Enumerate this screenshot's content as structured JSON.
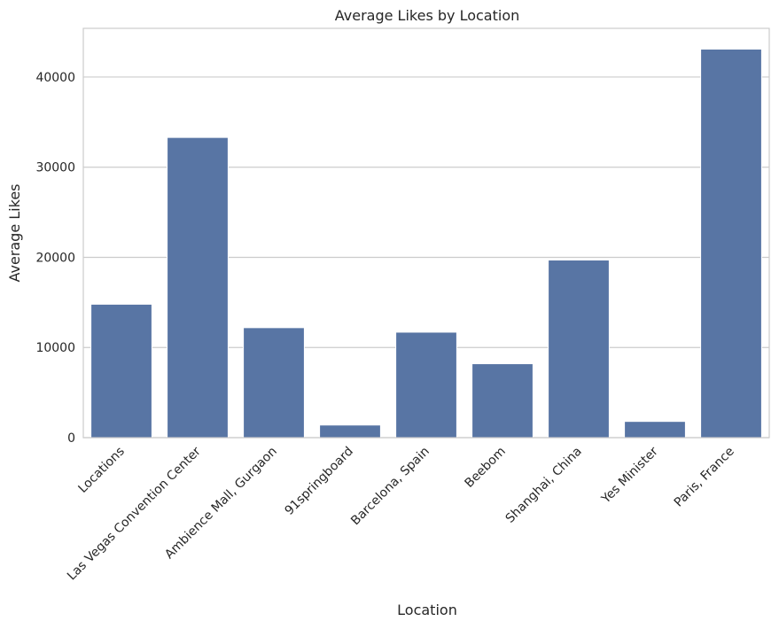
{
  "chart_data": {
    "type": "bar",
    "title": "Average Likes by Location",
    "xlabel": "Location",
    "ylabel": "Average Likes",
    "categories": [
      "Locations",
      "Las Vegas Convention Center",
      "Ambience Mall, Gurgaon",
      "91springboard",
      "Barcelona, Spain",
      "Beebom",
      "Shanghai, China",
      "Yes Minister",
      "Paris, France"
    ],
    "values": [
      14800,
      33300,
      12200,
      1400,
      11700,
      8200,
      19700,
      1800,
      43100
    ],
    "ylim": [
      0,
      45400
    ],
    "yticks": [
      0,
      10000,
      20000,
      30000,
      40000
    ],
    "grid": "y",
    "bar_color": "#5875a4",
    "grid_color": "#cccccc"
  }
}
